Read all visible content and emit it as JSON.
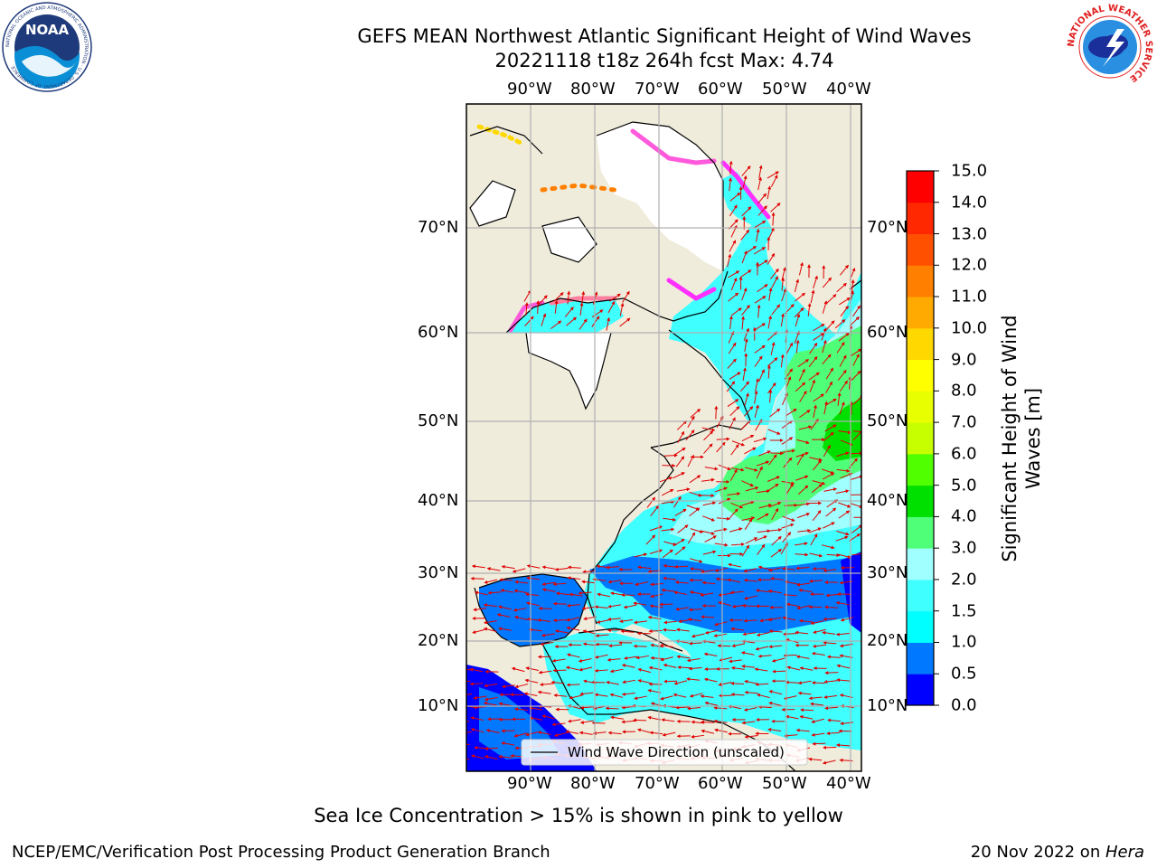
{
  "header": {
    "title_line1": "GEFS MEAN Northwest Atlantic Significant Height of Wind Waves",
    "title_line2": "20221118 t18z 264h fcst   Max: 4.74"
  },
  "logos": {
    "left": {
      "icon": "noaa-logo",
      "text": "NOAA",
      "ring_text": "NATIONAL OCEANIC AND ATMOSPHERIC ADMINISTRATION · U.S. DEPARTMENT OF COMMERCE"
    },
    "right": {
      "icon": "nws-logo",
      "ring_text": "NATIONAL WEATHER SERVICE"
    }
  },
  "map": {
    "lon_labels": [
      "90°W",
      "80°W",
      "70°W",
      "60°W",
      "50°W",
      "40°W"
    ],
    "lat_labels": [
      "70°N",
      "60°N",
      "50°N",
      "40°N",
      "30°N",
      "20°N",
      "10°N"
    ],
    "legend": "Wind Wave Direction (unscaled)",
    "colors": {
      "land": "#efecdc",
      "ice": "#ffffff",
      "vector": "#e00000",
      "grid": "#b0b0b0"
    }
  },
  "colorbar": {
    "label_line1": "Significant Height of Wind",
    "label_line2": "Waves [m]",
    "ticks": [
      "0.0",
      "0.5",
      "1.0",
      "1.5",
      "2.0",
      "3.0",
      "4.0",
      "5.0",
      "6.0",
      "7.0",
      "8.0",
      "9.0",
      "10.0",
      "11.0",
      "12.0",
      "13.0",
      "14.0",
      "15.0"
    ],
    "colors": [
      "#0000ff",
      "#0078ff",
      "#00ffff",
      "#40ffff",
      "#a0ffff",
      "#50ff78",
      "#00e000",
      "#50ff00",
      "#c8ff00",
      "#e8ff00",
      "#ffff00",
      "#ffd800",
      "#ffaa00",
      "#ff8000",
      "#ff5000",
      "#ff2800",
      "#ff0000"
    ]
  },
  "footer": {
    "ice_note": "Sea Ice Concentration > 15% is shown in pink to yellow",
    "credit": "NCEP/EMC/Verification Post Processing Product Generation Branch",
    "date_prefix": "20 Nov 2022 on ",
    "host": "Hera"
  }
}
